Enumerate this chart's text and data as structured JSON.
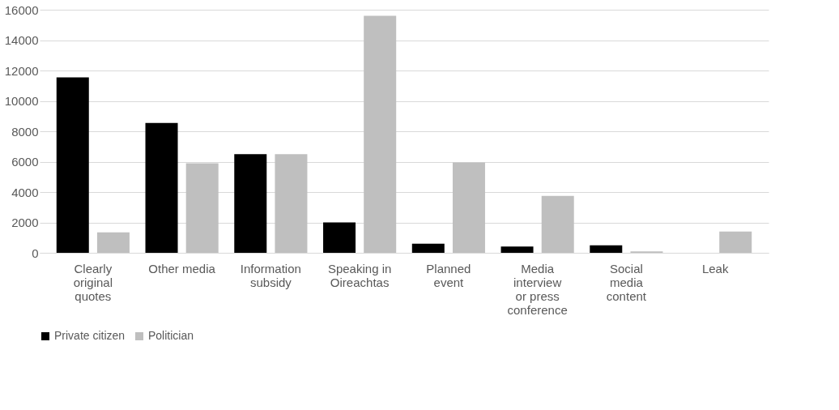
{
  "chart_data": {
    "type": "bar",
    "categories": [
      "Clearly original quotes",
      "Other media",
      "Information subsidy",
      "Speaking in Oireachtas",
      "Planned event",
      "Media interview or press conference",
      "Social media content",
      "Leak"
    ],
    "series": [
      {
        "name": "Private citizen",
        "color": "#000000",
        "values": [
          11550,
          8550,
          6500,
          2000,
          600,
          420,
          500,
          0
        ]
      },
      {
        "name": "Politician",
        "color": "#bfbfbf",
        "values": [
          1350,
          5900,
          6500,
          15600,
          5950,
          3750,
          100,
          1400
        ]
      }
    ],
    "ylim": [
      0,
      16000
    ],
    "yticks": [
      0,
      2000,
      4000,
      6000,
      8000,
      10000,
      12000,
      14000,
      16000
    ],
    "grid": "y",
    "legend": "bottom"
  }
}
